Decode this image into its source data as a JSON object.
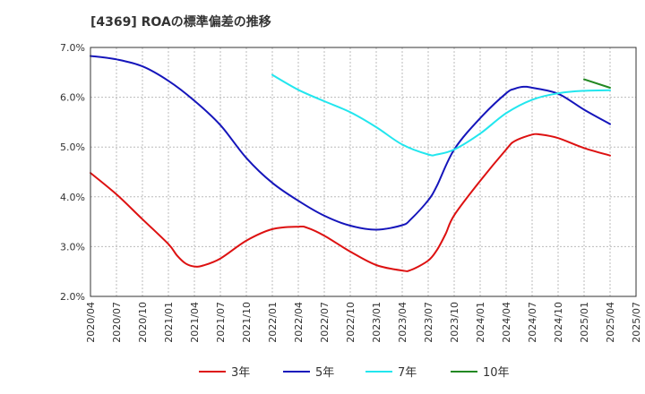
{
  "title": "[4369]  ROAの標準偏差の推移",
  "chart_data": {
    "type": "line",
    "title": "[4369]  ROAの標準偏差の推移",
    "xlabel": "",
    "ylabel": "",
    "ylim": [
      2.0,
      7.0
    ],
    "y_ticks": [
      2.0,
      3.0,
      4.0,
      5.0,
      6.0,
      7.0
    ],
    "y_tick_labels": [
      "2.0%",
      "3.0%",
      "4.0%",
      "5.0%",
      "6.0%",
      "7.0%"
    ],
    "x_tick_labels": [
      "2020/04",
      "2020/07",
      "2020/10",
      "2021/01",
      "2021/04",
      "2021/07",
      "2021/10",
      "2022/01",
      "2022/04",
      "2022/07",
      "2022/10",
      "2023/01",
      "2023/04",
      "2023/07",
      "2023/10",
      "2024/01",
      "2024/04",
      "2024/07",
      "2024/10",
      "2025/01",
      "2025/04",
      "2025/07"
    ],
    "grid": true,
    "legend_position": "bottom",
    "series": [
      {
        "name": "3年",
        "color": "#dd1111",
        "points": [
          [
            "2020/04",
            4.48
          ],
          [
            "2020/07",
            4.05
          ],
          [
            "2020/10",
            3.55
          ],
          [
            "2021/01",
            3.05
          ],
          [
            "2021/02",
            2.82
          ],
          [
            "2021/03",
            2.66
          ],
          [
            "2021/04",
            2.6
          ],
          [
            "2021/05",
            2.62
          ],
          [
            "2021/07",
            2.76
          ],
          [
            "2021/10",
            3.12
          ],
          [
            "2022/01",
            3.35
          ],
          [
            "2022/04",
            3.4
          ],
          [
            "2022/05",
            3.38
          ],
          [
            "2022/07",
            3.22
          ],
          [
            "2022/10",
            2.9
          ],
          [
            "2023/01",
            2.63
          ],
          [
            "2023/04",
            2.52
          ],
          [
            "2023/05",
            2.53
          ],
          [
            "2023/07",
            2.72
          ],
          [
            "2023/08",
            2.93
          ],
          [
            "2023/09",
            3.25
          ],
          [
            "2023/10",
            3.63
          ],
          [
            "2024/01",
            4.32
          ],
          [
            "2024/04",
            4.95
          ],
          [
            "2024/05",
            5.12
          ],
          [
            "2024/07",
            5.25
          ],
          [
            "2024/08",
            5.25
          ],
          [
            "2024/10",
            5.18
          ],
          [
            "2025/01",
            4.98
          ],
          [
            "2025/04",
            4.83
          ]
        ]
      },
      {
        "name": "5年",
        "color": "#1515bb",
        "points": [
          [
            "2020/04",
            6.83
          ],
          [
            "2020/07",
            6.76
          ],
          [
            "2020/10",
            6.62
          ],
          [
            "2021/01",
            6.33
          ],
          [
            "2021/04",
            5.93
          ],
          [
            "2021/07",
            5.44
          ],
          [
            "2021/10",
            4.78
          ],
          [
            "2022/01",
            4.28
          ],
          [
            "2022/04",
            3.92
          ],
          [
            "2022/07",
            3.62
          ],
          [
            "2022/10",
            3.42
          ],
          [
            "2023/01",
            3.34
          ],
          [
            "2023/04",
            3.43
          ],
          [
            "2023/05",
            3.55
          ],
          [
            "2023/07",
            3.93
          ],
          [
            "2023/08",
            4.22
          ],
          [
            "2023/10",
            4.95
          ],
          [
            "2024/01",
            5.58
          ],
          [
            "2024/04",
            6.08
          ],
          [
            "2024/05",
            6.17
          ],
          [
            "2024/06",
            6.21
          ],
          [
            "2024/07",
            6.19
          ],
          [
            "2024/10",
            6.07
          ],
          [
            "2025/01",
            5.75
          ],
          [
            "2025/04",
            5.46
          ]
        ]
      },
      {
        "name": "7年",
        "color": "#22e6ee",
        "points": [
          [
            "2022/01",
            6.45
          ],
          [
            "2022/04",
            6.15
          ],
          [
            "2022/07",
            5.92
          ],
          [
            "2022/10",
            5.7
          ],
          [
            "2023/01",
            5.4
          ],
          [
            "2023/04",
            5.05
          ],
          [
            "2023/07",
            4.85
          ],
          [
            "2023/08",
            4.85
          ],
          [
            "2023/10",
            4.95
          ],
          [
            "2024/01",
            5.27
          ],
          [
            "2024/04",
            5.68
          ],
          [
            "2024/07",
            5.95
          ],
          [
            "2024/10",
            6.08
          ],
          [
            "2025/01",
            6.13
          ],
          [
            "2025/04",
            6.14
          ]
        ]
      },
      {
        "name": "10年",
        "color": "#228822",
        "points": [
          [
            "2025/01",
            6.36
          ],
          [
            "2025/04",
            6.19
          ]
        ]
      }
    ]
  }
}
